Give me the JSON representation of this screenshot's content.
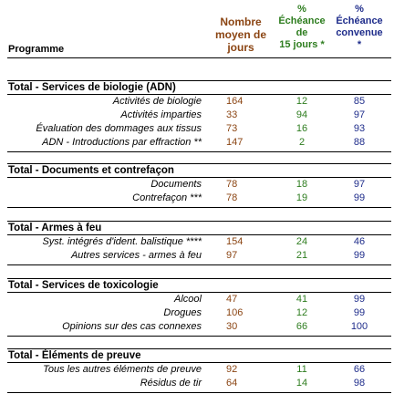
{
  "header": {
    "programme": "Programme",
    "days": [
      "Nombre",
      "moyen de",
      "jours"
    ],
    "fifteen": [
      "%",
      "Échéance",
      "de",
      "15 jours *"
    ],
    "agreed": [
      "%",
      "Échéance",
      "convenue",
      "*"
    ]
  },
  "sections": [
    {
      "title": "Total - Services de biologie (ADN)",
      "rows": [
        {
          "label": "Activités de biologie",
          "days": "164",
          "pct15": "12",
          "pctAgreed": "85"
        },
        {
          "label": "Activités imparties",
          "days": "33",
          "pct15": "94",
          "pctAgreed": "97"
        },
        {
          "label": "Évaluation des dommages aux tissus",
          "days": "73",
          "pct15": "16",
          "pctAgreed": "93"
        },
        {
          "label": "ADN - Introductions par effraction **",
          "days": "147",
          "pct15": "2",
          "pctAgreed": "88"
        }
      ]
    },
    {
      "title": "Total - Documents et contrefaçon",
      "rows": [
        {
          "label": "Documents",
          "days": "78",
          "pct15": "18",
          "pctAgreed": "97"
        },
        {
          "label": "Contrefaçon ***",
          "days": "78",
          "pct15": "19",
          "pctAgreed": "99"
        }
      ]
    },
    {
      "title": "Total - Armes à feu",
      "rows": [
        {
          "label": "Syst. intégrés d'ident. balistique ****",
          "days": "154",
          "pct15": "24",
          "pctAgreed": "46"
        },
        {
          "label": "Autres services - armes à feu",
          "days": "97",
          "pct15": "21",
          "pctAgreed": "99"
        }
      ]
    },
    {
      "title": "Total - Services de toxicologie",
      "rows": [
        {
          "label": "Alcool",
          "days": "47",
          "pct15": "41",
          "pctAgreed": "99"
        },
        {
          "label": "Drogues",
          "days": "106",
          "pct15": "12",
          "pctAgreed": "99"
        },
        {
          "label": "Opinions sur des cas connexes",
          "days": "30",
          "pct15": "66",
          "pctAgreed": "100"
        }
      ]
    },
    {
      "title": "Total - Éléments de preuve",
      "rows": [
        {
          "label": "Tous les autres éléments de preuve",
          "days": "92",
          "pct15": "11",
          "pctAgreed": "66"
        },
        {
          "label": "Résidus de tir",
          "days": "64",
          "pct15": "14",
          "pctAgreed": "98"
        }
      ]
    }
  ],
  "colors": {
    "days": "#8B4513",
    "pct15": "#2E7D1F",
    "pctAgreed": "#1F2D8B"
  }
}
